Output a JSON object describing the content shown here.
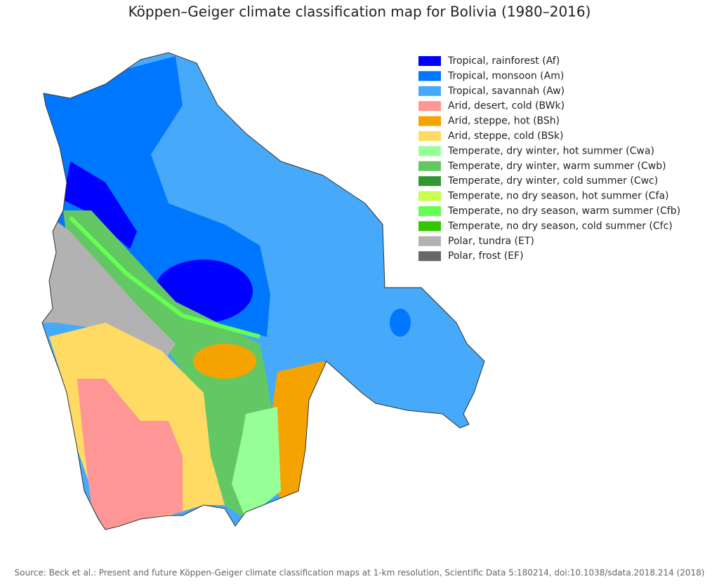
{
  "title": "Köppen–Geiger climate classification map for Bolivia (1980–2016)",
  "legend": [
    {
      "label": "Tropical, rainforest (Af)",
      "color": "#0000fe"
    },
    {
      "label": "Tropical, monsoon (Am)",
      "color": "#0077ff"
    },
    {
      "label": "Tropical, savannah (Aw)",
      "color": "#46a9fa"
    },
    {
      "label": "Arid, desert, cold (BWk)",
      "color": "#fe9695"
    },
    {
      "label": "Arid, steppe, hot (BSh)",
      "color": "#f5a301"
    },
    {
      "label": "Arid, steppe, cold (BSk)",
      "color": "#ffdb63"
    },
    {
      "label": "Temperate, dry winter, hot summer (Cwa)",
      "color": "#96ff96"
    },
    {
      "label": "Temperate, dry winter, warm summer (Cwb)",
      "color": "#63c764"
    },
    {
      "label": "Temperate, dry winter, cold summer (Cwc)",
      "color": "#329633"
    },
    {
      "label": "Temperate, no dry season, hot summer (Cfa)",
      "color": "#c8ff50"
    },
    {
      "label": "Temperate, no dry season, warm summer (Cfb)",
      "color": "#64ff50"
    },
    {
      "label": "Temperate, no dry season, cold summer (Cfc)",
      "color": "#32c801"
    },
    {
      "label": "Polar, tundra (ET)",
      "color": "#b2b2b2"
    },
    {
      "label": "Polar, frost (EF)",
      "color": "#686868"
    }
  ],
  "source": "Source: Beck et al.: Present and future Köppen-Geiger climate classification maps at 1-km resolution, Scientific Data 5:180214, doi:10.1038/sdata.2018.214 (2018)"
}
